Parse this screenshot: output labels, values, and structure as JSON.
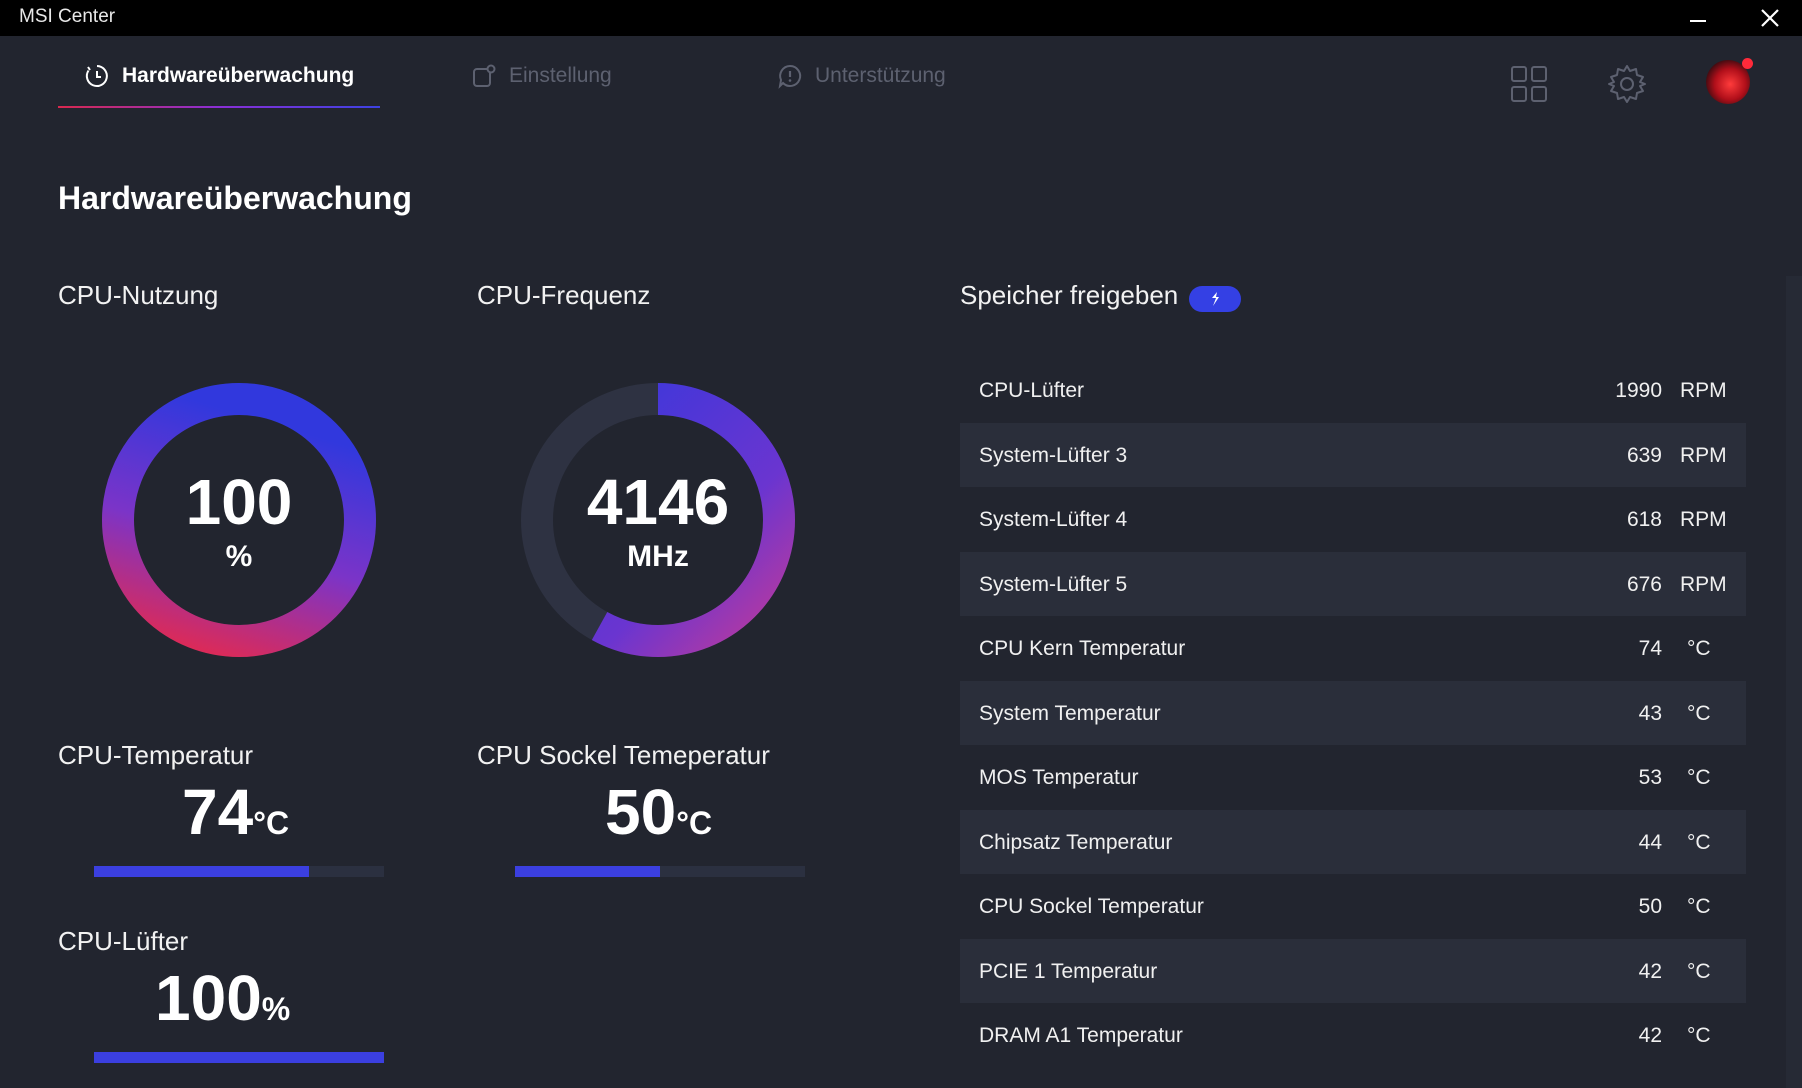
{
  "window": {
    "title": "MSI Center"
  },
  "nav": {
    "tabs": [
      {
        "label": "Hardwareüberwachung",
        "active": true
      },
      {
        "label": "Einstellung",
        "active": false
      },
      {
        "label": "Unterstützung",
        "active": false
      }
    ],
    "icons": [
      "grid-icon",
      "gear-icon",
      "avatar"
    ]
  },
  "page": {
    "title": "Hardwareüberwachung"
  },
  "cpu_usage": {
    "label": "CPU-Nutzung",
    "value": "100",
    "unit": "%",
    "fraction": 1.0
  },
  "cpu_freq": {
    "label": "CPU-Frequenz",
    "value": "4146",
    "unit": "MHz",
    "fraction": 0.58
  },
  "cpu_temp": {
    "label": "CPU-Temperatur",
    "value": "74",
    "unit": "°C",
    "fraction": 0.74
  },
  "socket_temp": {
    "label": "CPU Sockel Temeperatur",
    "value": "50",
    "unit": "°C",
    "fraction": 0.5
  },
  "cpu_fan": {
    "label": "CPU-Lüfter",
    "value": "100",
    "unit": "%",
    "fraction": 1.0
  },
  "memory": {
    "label": "Speicher freigeben"
  },
  "sensors": [
    {
      "name": "CPU-Lüfter",
      "value": "1990",
      "unit": "RPM"
    },
    {
      "name": "System-Lüfter 3",
      "value": "639",
      "unit": "RPM"
    },
    {
      "name": "System-Lüfter 4",
      "value": "618",
      "unit": "RPM"
    },
    {
      "name": "System-Lüfter 5",
      "value": "676",
      "unit": "RPM"
    },
    {
      "name": "CPU Kern Temperatur",
      "value": "74",
      "unit": "°C"
    },
    {
      "name": "System Temperatur",
      "value": "43",
      "unit": "°C"
    },
    {
      "name": "MOS Temperatur",
      "value": "53",
      "unit": "°C"
    },
    {
      "name": "Chipsatz Temperatur",
      "value": "44",
      "unit": "°C"
    },
    {
      "name": "CPU Sockel Temperatur",
      "value": "50",
      "unit": "°C"
    },
    {
      "name": "PCIE 1 Temperatur",
      "value": "42",
      "unit": "°C"
    },
    {
      "name": "DRAM A1 Temperatur",
      "value": "42",
      "unit": "°C"
    }
  ],
  "colors": {
    "background": "#22252f",
    "accent_blue": "#3b3fe0",
    "accent_red": "#e8294a",
    "bar_track": "#2b3040"
  }
}
